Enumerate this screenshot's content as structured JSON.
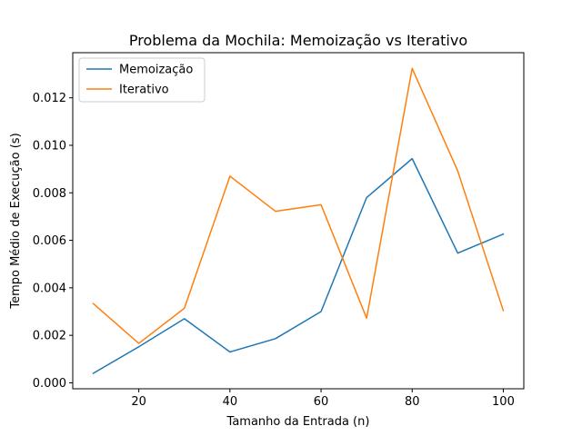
{
  "chart_data": {
    "type": "line",
    "title": "Problema da Mochila: Memoização vs Iterativo",
    "xlabel": "Tamanho da Entrada (n)",
    "ylabel": "Tempo Médio de Execução (s)",
    "xlim": [
      5.5,
      104.5
    ],
    "ylim": [
      -0.00025,
      0.0139
    ],
    "xticks": [
      20,
      40,
      60,
      80,
      100
    ],
    "xtick_labels": [
      "20",
      "40",
      "60",
      "80",
      "100"
    ],
    "yticks": [
      0.0,
      0.002,
      0.004,
      0.006,
      0.008,
      0.01,
      0.012
    ],
    "ytick_labels": [
      "0.000",
      "0.002",
      "0.004",
      "0.006",
      "0.008",
      "0.010",
      "0.012"
    ],
    "x": [
      10,
      20,
      30,
      40,
      50,
      60,
      70,
      80,
      90,
      100
    ],
    "series": [
      {
        "name": "Memoização",
        "color": "#1f77b4",
        "values": [
          0.0004,
          0.00152,
          0.0027,
          0.0013,
          0.00186,
          0.003,
          0.0078,
          0.00944,
          0.00546,
          0.00626
        ]
      },
      {
        "name": "Iterativo",
        "color": "#ff7f0e",
        "values": [
          0.00334,
          0.00166,
          0.00314,
          0.0087,
          0.00722,
          0.0075,
          0.00272,
          0.01324,
          0.00892,
          0.00304
        ]
      }
    ],
    "grid": false,
    "legend_position": "upper-left"
  }
}
